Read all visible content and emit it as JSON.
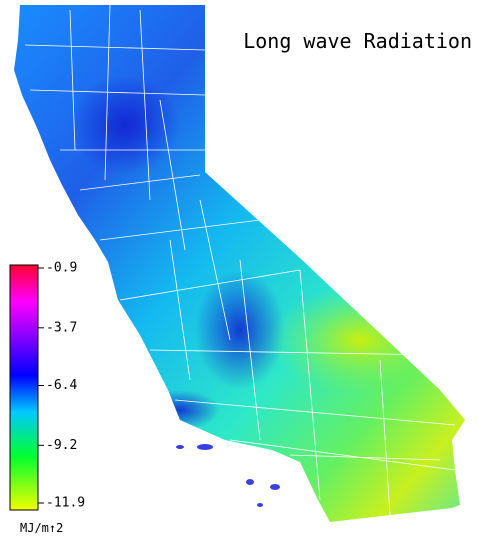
{
  "title": "Long wave Radiation",
  "colorbar": {
    "ticks": [
      -0.9,
      -3.7,
      -6.4,
      -9.2,
      -11.9
    ],
    "unit": "MJ/m↑2"
  }
}
